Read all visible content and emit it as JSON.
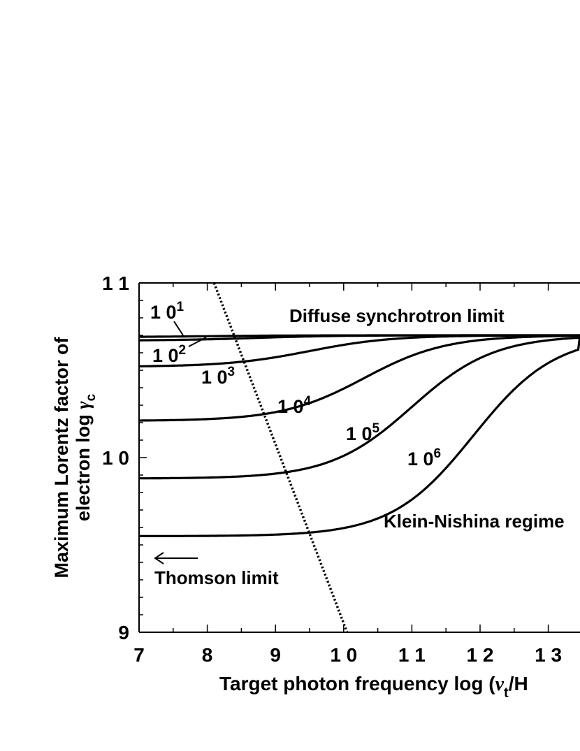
{
  "chart_data": {
    "type": "line",
    "xlabel_main": "Target photon frequency  log (",
    "xlabel_nu": "ν",
    "xlabel_sub": "t",
    "xlabel_tail": "/H",
    "ylabel_line1": "Maximum Lorentz factor of",
    "ylabel_line2": "electron  log ",
    "ylabel_gamma": "γ",
    "ylabel_sub": "c",
    "xlim": [
      7,
      13.5
    ],
    "ylim": [
      9,
      11
    ],
    "x_ticks": [
      {
        "value": 7,
        "label": "7"
      },
      {
        "value": 8,
        "label": "8"
      },
      {
        "value": 9,
        "label": "9"
      },
      {
        "value": 10,
        "label": "1 0"
      },
      {
        "value": 11,
        "label": "1 1"
      },
      {
        "value": 12,
        "label": "1 2"
      },
      {
        "value": 13,
        "label": "1 3"
      }
    ],
    "y_ticks": [
      {
        "value": 9,
        "label": "9"
      },
      {
        "value": 10,
        "label": "1 0"
      },
      {
        "value": 11,
        "label": "1 1"
      }
    ],
    "annotations": {
      "diffuse": "Diffuse synchrotron limit",
      "thomson": "Thomson limit",
      "klein": "Klein-Nishina regime"
    },
    "series": [
      {
        "base": "1 0",
        "exp": "1",
        "low": 10.69,
        "high": 10.7,
        "mid": 8.0,
        "width": 0.6
      },
      {
        "base": "1 0",
        "exp": "2",
        "low": 10.67,
        "high": 10.7,
        "mid": 8.7,
        "width": 0.6
      },
      {
        "base": "1 0",
        "exp": "3",
        "low": 10.52,
        "high": 10.7,
        "mid": 9.5,
        "width": 0.6
      },
      {
        "base": "1 0",
        "exp": "4",
        "low": 10.21,
        "high": 10.7,
        "mid": 10.3,
        "width": 0.6
      },
      {
        "base": "1 0",
        "exp": "5",
        "low": 9.88,
        "high": 10.7,
        "mid": 11.0,
        "width": 0.6
      },
      {
        "base": "1 0",
        "exp": "6",
        "low": 9.55,
        "high": 10.7,
        "mid": 11.9,
        "width": 0.6
      }
    ],
    "thomson_boundary": {
      "x": [
        8.1,
        10.05
      ],
      "y": [
        11.0,
        9.0
      ],
      "style": "dotted"
    },
    "grid": false
  }
}
